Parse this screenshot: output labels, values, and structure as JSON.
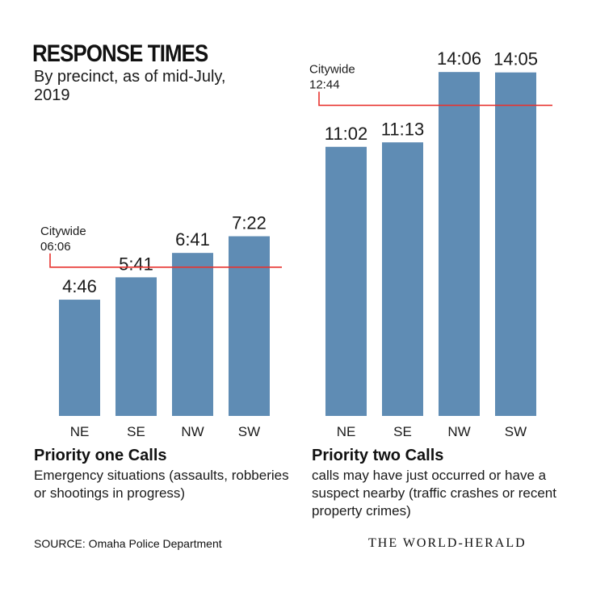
{
  "header": {
    "title": "RESPONSE TIMES",
    "subtitle": "By precinct, as of mid-July, 2019"
  },
  "chart_data": [
    {
      "type": "bar",
      "categories": [
        "NE",
        "SE",
        "NW",
        "SW"
      ],
      "values": [
        4.7667,
        5.6833,
        6.6833,
        7.3667
      ],
      "value_labels": [
        "4:46",
        "5:41",
        "6:41",
        "7:22"
      ],
      "reference": {
        "label": "Citywide",
        "value_label": "06:06",
        "value": 6.1
      },
      "ylim": [
        0,
        14.2
      ],
      "unit": "minutes",
      "caption_title": "Priority one Calls",
      "caption_text": "Emergency situations (assaults, robberies or shootings in progress)",
      "grid": false,
      "color": "#5f8cb4",
      "reference_color": "#e8332f"
    },
    {
      "type": "bar",
      "categories": [
        "NE",
        "SE",
        "NW",
        "SW"
      ],
      "values": [
        11.0333,
        11.2167,
        14.1,
        14.0833
      ],
      "value_labels": [
        "11:02",
        "11:13",
        "14:06",
        "14:05"
      ],
      "reference": {
        "label": "Citywide",
        "value_label": "12:44",
        "value": 12.7333
      },
      "ylim": [
        0,
        14.2
      ],
      "unit": "minutes",
      "caption_title": "Priority two Calls",
      "caption_text": "calls may have just occurred or have a suspect nearby (traffic crashes or recent property crimes)",
      "grid": false,
      "color": "#5f8cb4",
      "reference_color": "#e8332f"
    }
  ],
  "footer": {
    "source": "SOURCE: Omaha Police Department",
    "brand": "THE WORLD-HERALD"
  }
}
